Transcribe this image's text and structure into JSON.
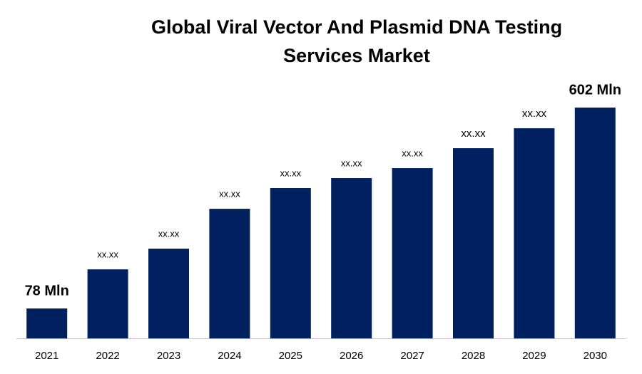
{
  "chart_data": {
    "type": "bar",
    "title": "Global Viral Vector And Plasmid DNA Testing Services Market",
    "categories": [
      "2021",
      "2022",
      "2023",
      "2024",
      "2025",
      "2026",
      "2027",
      "2028",
      "2029",
      "2030"
    ],
    "values": [
      78,
      180,
      234,
      338,
      392,
      418,
      444,
      496,
      548,
      602
    ],
    "value_labels": [
      "78 Mln",
      "xx.xx",
      "xx.xx",
      "xx.xx",
      "xx.xx",
      "xx.xx",
      "xx.xx",
      "xx.xx",
      "xx.xx",
      "602 Mln"
    ],
    "color": "#002060"
  }
}
